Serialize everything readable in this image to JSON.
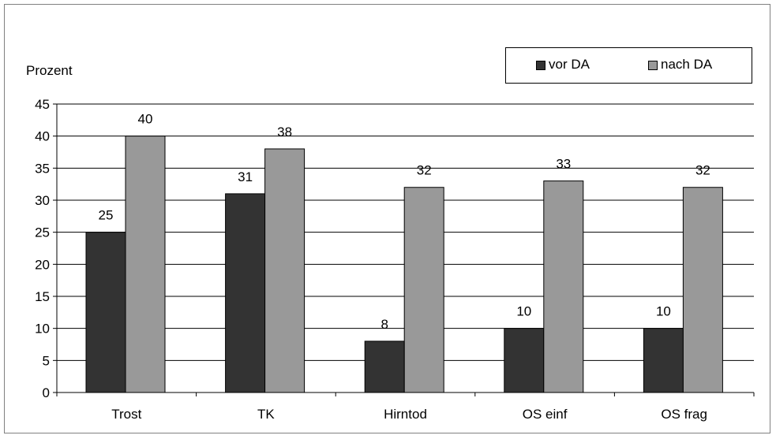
{
  "chart_data": {
    "type": "bar",
    "ylabel": "Prozent",
    "categories": [
      "Trost",
      "TK",
      "Hirntod",
      "OS einf",
      "OS frag"
    ],
    "series": [
      {
        "name": "vor DA",
        "color": "#333333",
        "values": [
          25,
          31,
          8,
          10,
          10
        ]
      },
      {
        "name": "nach DA",
        "color": "#999999",
        "values": [
          40,
          38,
          32,
          33,
          32
        ]
      }
    ],
    "ylim": [
      0,
      45
    ],
    "yticks": [
      0,
      5,
      10,
      15,
      20,
      25,
      30,
      35,
      40,
      45
    ],
    "grid": true,
    "data_labels": true,
    "legend_position": "top-right"
  }
}
